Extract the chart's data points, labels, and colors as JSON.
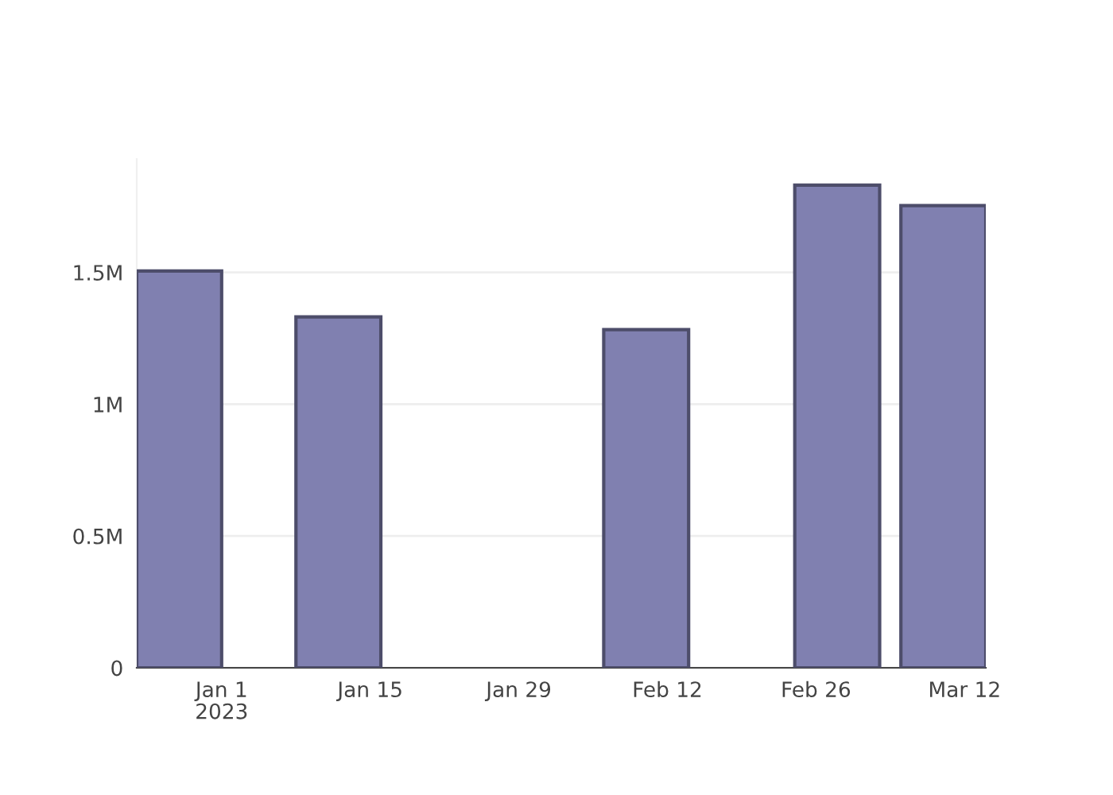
{
  "chart_data": {
    "type": "bar",
    "x": [
      "2022-12-28",
      "2023-01-12",
      "2023-02-10",
      "2023-02-28",
      "2023-03-10"
    ],
    "values": [
      1505000,
      1331000,
      1283000,
      1831000,
      1753000
    ],
    "color": "#8080b0",
    "xlim": [
      "2022-12-24",
      "2023-03-14"
    ],
    "xticks": [
      {
        "value": "2023-01-01",
        "label": "Jan 1\n2023"
      },
      {
        "value": "2023-01-15",
        "label": "Jan 15"
      },
      {
        "value": "2023-01-29",
        "label": "Jan 29"
      },
      {
        "value": "2023-02-12",
        "label": "Feb 12"
      },
      {
        "value": "2023-02-26",
        "label": "Feb 26"
      },
      {
        "value": "2023-03-12",
        "label": "Mar 12"
      }
    ],
    "ylim": [
      0,
      1930000
    ],
    "yticks": [
      {
        "value": 0,
        "label": "0"
      },
      {
        "value": 500000,
        "label": "0.5M"
      },
      {
        "value": 1000000,
        "label": "1M"
      },
      {
        "value": 1500000,
        "label": "1.5M"
      }
    ],
    "grid": "y"
  }
}
